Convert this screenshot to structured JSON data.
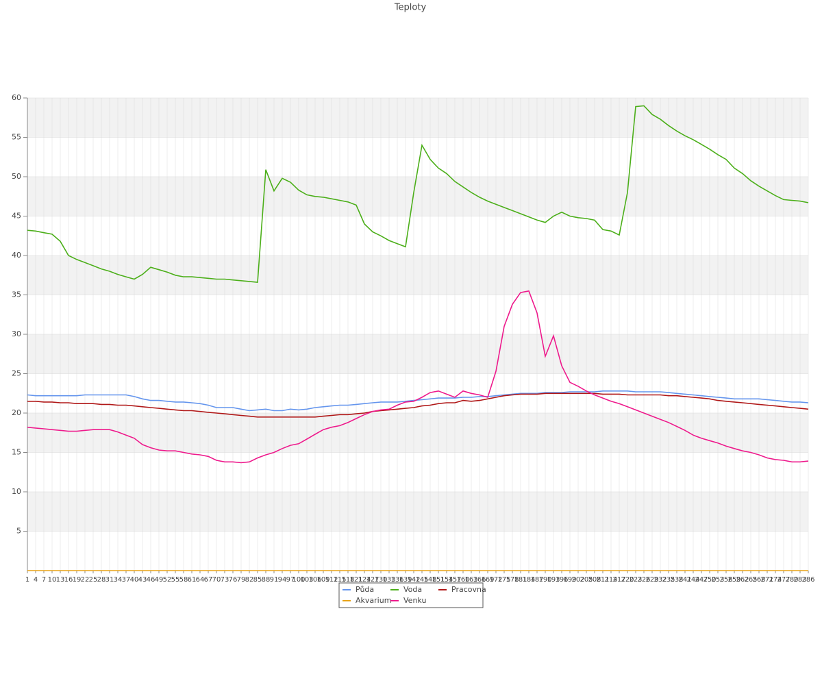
{
  "chart_data": {
    "type": "line",
    "title": "Teploty",
    "categories": [
      "1",
      "4",
      "7",
      "10",
      "13",
      "16",
      "19",
      "22",
      "25",
      "28",
      "31",
      "34",
      "37",
      "40",
      "43",
      "46",
      "49",
      "52",
      "55",
      "58",
      "61",
      "64",
      "67",
      "70",
      "73",
      "76",
      "79",
      "82",
      "85",
      "88",
      "91",
      "94",
      "97",
      "100",
      "103",
      "106",
      "109",
      "112",
      "115",
      "118",
      "121",
      "124",
      "127",
      "130",
      "133",
      "136",
      "139",
      "142",
      "145",
      "148",
      "151",
      "154",
      "157",
      "160",
      "163",
      "166",
      "169",
      "172",
      "175",
      "178",
      "181",
      "184",
      "187",
      "190",
      "193",
      "196",
      "199",
      "202",
      "205",
      "208",
      "211",
      "214",
      "217",
      "220",
      "223",
      "226",
      "229",
      "232",
      "235",
      "238",
      "241",
      "244",
      "247",
      "250",
      "253",
      "256",
      "259",
      "262",
      "265",
      "268",
      "271",
      "274",
      "277",
      "280",
      "283",
      "286"
    ],
    "series": [
      {
        "name": "Půda",
        "color": "#6495ed",
        "values": [
          22.3,
          22.2,
          22.2,
          22.2,
          22.2,
          22.2,
          22.2,
          22.3,
          22.3,
          22.3,
          22.3,
          22.3,
          22.3,
          22.1,
          21.8,
          21.6,
          21.6,
          21.5,
          21.4,
          21.4,
          21.3,
          21.2,
          21.0,
          20.7,
          20.7,
          20.7,
          20.5,
          20.3,
          20.4,
          20.5,
          20.3,
          20.3,
          20.5,
          20.4,
          20.5,
          20.7,
          20.8,
          20.9,
          21.0,
          21.0,
          21.1,
          21.2,
          21.3,
          21.4,
          21.4,
          21.4,
          21.5,
          21.6,
          21.7,
          21.8,
          21.9,
          21.9,
          21.9,
          22.0,
          22.0,
          22.1,
          22.1,
          22.2,
          22.3,
          22.4,
          22.5,
          22.5,
          22.5,
          22.6,
          22.6,
          22.6,
          22.7,
          22.7,
          22.7,
          22.7,
          22.8,
          22.8,
          22.8,
          22.8,
          22.7,
          22.7,
          22.7,
          22.7,
          22.6,
          22.5,
          22.4,
          22.3,
          22.2,
          22.1,
          22.0,
          21.9,
          21.8,
          21.8,
          21.8,
          21.8,
          21.7,
          21.6,
          21.5,
          21.4,
          21.4,
          21.3
        ]
      },
      {
        "name": "Voda",
        "color": "#4caf1a",
        "values": [
          43.2,
          43.1,
          42.9,
          42.7,
          41.8,
          40.0,
          39.5,
          39.1,
          38.7,
          38.3,
          38.0,
          37.6,
          37.3,
          37.0,
          37.6,
          38.5,
          38.2,
          37.9,
          37.5,
          37.3,
          37.3,
          37.2,
          37.1,
          37.0,
          37.0,
          36.9,
          36.8,
          36.7,
          36.6,
          50.9,
          48.2,
          49.8,
          49.3,
          48.3,
          47.7,
          47.5,
          47.4,
          47.2,
          47.0,
          46.8,
          46.4,
          44.0,
          43.0,
          42.5,
          41.9,
          41.5,
          41.1,
          48.0,
          54.0,
          52.2,
          51.1,
          50.4,
          49.4,
          48.7,
          48.0,
          47.4,
          46.9,
          46.5,
          46.1,
          45.7,
          45.3,
          44.9,
          44.5,
          44.2,
          45.0,
          45.5,
          45.0,
          44.8,
          44.7,
          44.5,
          43.3,
          43.1,
          42.6,
          48.0,
          58.9,
          59.0,
          57.9,
          57.3,
          56.5,
          55.8,
          55.2,
          54.7,
          54.1,
          53.5,
          52.8,
          52.2,
          51.1,
          50.4,
          49.5,
          48.8,
          48.2,
          47.6,
          47.1,
          47.0,
          46.9,
          46.7
        ]
      },
      {
        "name": "Pracovna",
        "color": "#b01818",
        "values": [
          21.5,
          21.5,
          21.4,
          21.4,
          21.3,
          21.3,
          21.2,
          21.2,
          21.2,
          21.1,
          21.1,
          21.0,
          21.0,
          20.9,
          20.8,
          20.7,
          20.6,
          20.5,
          20.4,
          20.3,
          20.3,
          20.2,
          20.1,
          20.0,
          19.9,
          19.8,
          19.7,
          19.6,
          19.5,
          19.5,
          19.5,
          19.5,
          19.5,
          19.5,
          19.5,
          19.5,
          19.6,
          19.7,
          19.8,
          19.8,
          19.9,
          20.0,
          20.2,
          20.3,
          20.4,
          20.5,
          20.6,
          20.7,
          20.9,
          21.0,
          21.2,
          21.3,
          21.3,
          21.6,
          21.5,
          21.6,
          21.8,
          22.0,
          22.2,
          22.3,
          22.4,
          22.4,
          22.4,
          22.5,
          22.5,
          22.5,
          22.5,
          22.5,
          22.5,
          22.5,
          22.4,
          22.4,
          22.4,
          22.3,
          22.3,
          22.3,
          22.3,
          22.3,
          22.2,
          22.2,
          22.1,
          22.0,
          21.9,
          21.8,
          21.6,
          21.5,
          21.4,
          21.3,
          21.2,
          21.1,
          21.0,
          20.9,
          20.8,
          20.7,
          20.6,
          20.5
        ]
      },
      {
        "name": "Akvarium",
        "color": "#e8a317",
        "values": [
          0,
          0,
          0,
          0,
          0,
          0,
          0,
          0,
          0,
          0,
          0,
          0,
          0,
          0,
          0,
          0,
          0,
          0,
          0,
          0,
          0,
          0,
          0,
          0,
          0,
          0,
          0,
          0,
          0,
          0,
          0,
          0,
          0,
          0,
          0,
          0,
          0,
          0,
          0,
          0,
          0,
          0,
          0,
          0,
          0,
          0,
          0,
          0,
          0,
          0,
          0,
          0,
          0,
          0,
          0,
          0,
          0,
          0,
          0,
          0,
          0,
          0,
          0,
          0,
          0,
          0,
          0,
          0,
          0,
          0,
          0,
          0,
          0,
          0,
          0,
          0,
          0,
          0,
          0,
          0,
          0,
          0,
          0,
          0,
          0,
          0,
          0,
          0,
          0,
          0,
          0,
          0,
          0,
          0,
          0,
          0
        ]
      },
      {
        "name": "Venku",
        "color": "#ee1a8c",
        "values": [
          18.2,
          18.1,
          18.0,
          17.9,
          17.8,
          17.7,
          17.7,
          17.8,
          17.9,
          17.9,
          17.9,
          17.6,
          17.2,
          16.8,
          16.0,
          15.6,
          15.3,
          15.2,
          15.2,
          15.0,
          14.8,
          14.7,
          14.5,
          14.0,
          13.8,
          13.8,
          13.7,
          13.8,
          14.3,
          14.7,
          15.0,
          15.5,
          15.9,
          16.1,
          16.7,
          17.3,
          17.9,
          18.2,
          18.4,
          18.8,
          19.3,
          19.8,
          20.2,
          20.4,
          20.5,
          21.0,
          21.4,
          21.5,
          22.0,
          22.6,
          22.8,
          22.4,
          22.0,
          22.8,
          22.5,
          22.3,
          22.0,
          25.3,
          31.0,
          33.8,
          35.3,
          35.5,
          32.7,
          27.2,
          29.8,
          26.0,
          23.9,
          23.4,
          22.8,
          22.3,
          21.9,
          21.5,
          21.2,
          20.8,
          20.4,
          20.0,
          19.6,
          19.2,
          18.8,
          18.3,
          17.8,
          17.2,
          16.8,
          16.5,
          16.2,
          15.8,
          15.5,
          15.2,
          15.0,
          14.7,
          14.3,
          14.1,
          14.0,
          13.8,
          13.8,
          13.9
        ]
      }
    ],
    "ylim": [
      0,
      60
    ],
    "yticks": [
      5,
      10,
      15,
      20,
      25,
      30,
      35,
      40,
      45,
      50,
      55,
      60
    ],
    "grid": true,
    "legend": "bottom"
  }
}
